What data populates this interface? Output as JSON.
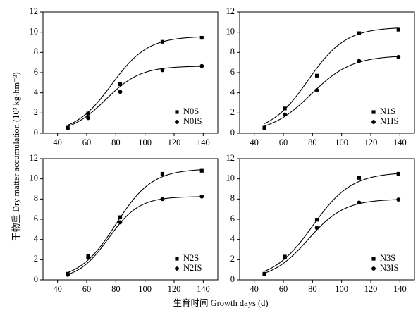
{
  "figure": {
    "ylabel": "干物重 Dry matter accumulation (10³ kg·hm⁻²)",
    "xlabel": "生育时间 Growth days (d)"
  },
  "chart_data": [
    {
      "type": "scatter",
      "xlim": [
        30,
        150
      ],
      "ylim": [
        0,
        12
      ],
      "xticks": [
        40,
        60,
        80,
        100,
        120,
        140
      ],
      "yticks": [
        0,
        2,
        4,
        6,
        8,
        10,
        12
      ],
      "legend_position": "bottom-right",
      "series": [
        {
          "name": "N0S",
          "marker": "square",
          "x": [
            47,
            61,
            83,
            112,
            139
          ],
          "y": [
            0.55,
            1.95,
            4.85,
            9.05,
            9.45
          ],
          "fit": {
            "a": 9.6,
            "b": 77,
            "c": 12.5
          }
        },
        {
          "name": "N0IS",
          "marker": "circle",
          "x": [
            47,
            61,
            83,
            112,
            139
          ],
          "y": [
            0.5,
            1.5,
            4.1,
            6.25,
            6.65
          ],
          "fit": {
            "a": 6.65,
            "b": 73,
            "c": 12.0
          }
        }
      ]
    },
    {
      "type": "scatter",
      "xlim": [
        30,
        150
      ],
      "ylim": [
        0,
        12
      ],
      "xticks": [
        40,
        60,
        80,
        100,
        120,
        140
      ],
      "yticks": [
        0,
        2,
        4,
        6,
        8,
        10,
        12
      ],
      "legend_position": "bottom-right",
      "series": [
        {
          "name": "N1S",
          "marker": "square",
          "x": [
            47,
            61,
            83,
            112,
            139
          ],
          "y": [
            0.55,
            2.45,
            5.7,
            9.9,
            10.25
          ],
          "fit": {
            "a": 10.5,
            "b": 77,
            "c": 13.0
          }
        },
        {
          "name": "N1IS",
          "marker": "circle",
          "x": [
            47,
            61,
            83,
            112,
            139
          ],
          "y": [
            0.5,
            1.85,
            4.25,
            7.15,
            7.55
          ],
          "fit": {
            "a": 7.7,
            "b": 79,
            "c": 14.0
          }
        }
      ]
    },
    {
      "type": "scatter",
      "xlim": [
        30,
        150
      ],
      "ylim": [
        0,
        12
      ],
      "xticks": [
        40,
        60,
        80,
        100,
        120,
        140
      ],
      "yticks": [
        0,
        2,
        4,
        6,
        8,
        10,
        12
      ],
      "legend_position": "bottom-right",
      "series": [
        {
          "name": "N2S",
          "marker": "square",
          "x": [
            47,
            61,
            83,
            112,
            139
          ],
          "y": [
            0.6,
            2.4,
            6.2,
            10.5,
            10.8
          ],
          "fit": {
            "a": 11.0,
            "b": 80,
            "c": 12.5
          }
        },
        {
          "name": "N2IS",
          "marker": "circle",
          "x": [
            47,
            61,
            83,
            112,
            139
          ],
          "y": [
            0.5,
            2.2,
            5.7,
            8.0,
            8.25
          ],
          "fit": {
            "a": 8.25,
            "b": 75,
            "c": 10.5
          }
        }
      ]
    },
    {
      "type": "scatter",
      "xlim": [
        30,
        150
      ],
      "ylim": [
        0,
        12
      ],
      "xticks": [
        40,
        60,
        80,
        100,
        120,
        140
      ],
      "yticks": [
        0,
        2,
        4,
        6,
        8,
        10,
        12
      ],
      "legend_position": "bottom-right",
      "series": [
        {
          "name": "N3S",
          "marker": "square",
          "x": [
            47,
            61,
            83,
            112,
            139
          ],
          "y": [
            0.6,
            2.3,
            5.95,
            10.1,
            10.5
          ],
          "fit": {
            "a": 10.65,
            "b": 80,
            "c": 13.5
          }
        },
        {
          "name": "N3IS",
          "marker": "circle",
          "x": [
            47,
            61,
            83,
            112,
            139
          ],
          "y": [
            0.55,
            2.2,
            5.15,
            7.65,
            7.95
          ],
          "fit": {
            "a": 8.0,
            "b": 77,
            "c": 12.5
          }
        }
      ]
    }
  ]
}
